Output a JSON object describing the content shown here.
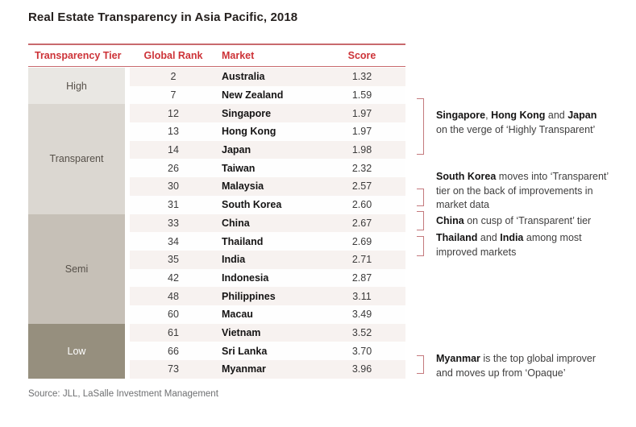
{
  "title": "Real Estate Transparency in Asia Pacific, 2018",
  "source": "Source: JLL, LaSalle Investment Management",
  "colors": {
    "header_red": "#cd3338",
    "rule_red": "#c8696d",
    "bracket_pink": "#c4797d",
    "tier_high_bg": "#e9e7e3",
    "tier_transparent_bg": "#dbd7d1",
    "tier_semi_bg": "#c6c0b7",
    "tier_low_bg": "#968f7e",
    "stripe_bg": "#f7f2f0"
  },
  "table": {
    "headers": {
      "tier": "Transparency Tier",
      "rank": "Global Rank",
      "market": "Market",
      "score": "Score"
    },
    "tiers": [
      {
        "label": "High",
        "row_count": 2
      },
      {
        "label": "Transparent",
        "row_count": 6
      },
      {
        "label": "Semi",
        "row_count": 6
      },
      {
        "label": "Low",
        "row_count": 3
      }
    ],
    "rows": [
      {
        "rank": "2",
        "market": "Australia",
        "score": "1.32"
      },
      {
        "rank": "7",
        "market": "New Zealand",
        "score": "1.59"
      },
      {
        "rank": "12",
        "market": "Singapore",
        "score": "1.97"
      },
      {
        "rank": "13",
        "market": "Hong Kong",
        "score": "1.97"
      },
      {
        "rank": "14",
        "market": "Japan",
        "score": "1.98"
      },
      {
        "rank": "26",
        "market": "Taiwan",
        "score": "2.32"
      },
      {
        "rank": "30",
        "market": "Malaysia",
        "score": "2.57"
      },
      {
        "rank": "31",
        "market": "South Korea",
        "score": "2.60"
      },
      {
        "rank": "33",
        "market": "China",
        "score": "2.67"
      },
      {
        "rank": "34",
        "market": "Thailand",
        "score": "2.69"
      },
      {
        "rank": "35",
        "market": "India",
        "score": "2.71"
      },
      {
        "rank": "42",
        "market": "Indonesia",
        "score": "2.87"
      },
      {
        "rank": "48",
        "market": "Philippines",
        "score": "3.11"
      },
      {
        "rank": "60",
        "market": "Macau",
        "score": "3.49"
      },
      {
        "rank": "61",
        "market": "Vietnam",
        "score": "3.52"
      },
      {
        "rank": "66",
        "market": "Sri Lanka",
        "score": "3.70"
      },
      {
        "rank": "73",
        "market": "Myanmar",
        "score": "3.96"
      }
    ]
  },
  "annotations": [
    {
      "b1": "Singapore",
      "t1": ", ",
      "b2": "Hong Kong",
      "t2": " and ",
      "b3": "Japan",
      "line2": "on the verge of ‘Highly Transparent’"
    },
    {
      "b1": "South Korea",
      "t1": " moves into ‘Transparent’ tier on the back of improvements in market data"
    },
    {
      "b1": "China",
      "t1": " on cusp of ‘Transparent’ tier"
    },
    {
      "b1": "Thailand",
      "t1": " and ",
      "b2": "India",
      "t2": " among most improved markets"
    },
    {
      "b1": "Myanmar",
      "t1": " is the top global improver and moves up from ‘Opaque’"
    }
  ],
  "chart_data": {
    "type": "table",
    "title": "Real Estate Transparency in Asia Pacific, 2018",
    "columns": [
      "Transparency Tier",
      "Global Rank",
      "Market",
      "Score"
    ],
    "rows": [
      [
        "High",
        2,
        "Australia",
        1.32
      ],
      [
        "High",
        7,
        "New Zealand",
        1.59
      ],
      [
        "Transparent",
        12,
        "Singapore",
        1.97
      ],
      [
        "Transparent",
        13,
        "Hong Kong",
        1.97
      ],
      [
        "Transparent",
        14,
        "Japan",
        1.98
      ],
      [
        "Transparent",
        26,
        "Taiwan",
        2.32
      ],
      [
        "Transparent",
        30,
        "Malaysia",
        2.57
      ],
      [
        "Transparent",
        31,
        "South Korea",
        2.6
      ],
      [
        "Semi",
        33,
        "China",
        2.67
      ],
      [
        "Semi",
        34,
        "Thailand",
        2.69
      ],
      [
        "Semi",
        35,
        "India",
        2.71
      ],
      [
        "Semi",
        42,
        "Indonesia",
        2.87
      ],
      [
        "Semi",
        48,
        "Philippines",
        3.11
      ],
      [
        "Semi",
        60,
        "Macau",
        3.49
      ],
      [
        "Low",
        61,
        "Vietnam",
        3.52
      ],
      [
        "Low",
        66,
        "Sri Lanka",
        3.7
      ],
      [
        "Low",
        73,
        "Myanmar",
        3.96
      ]
    ],
    "source": "Source: JLL, LaSalle Investment Management"
  }
}
